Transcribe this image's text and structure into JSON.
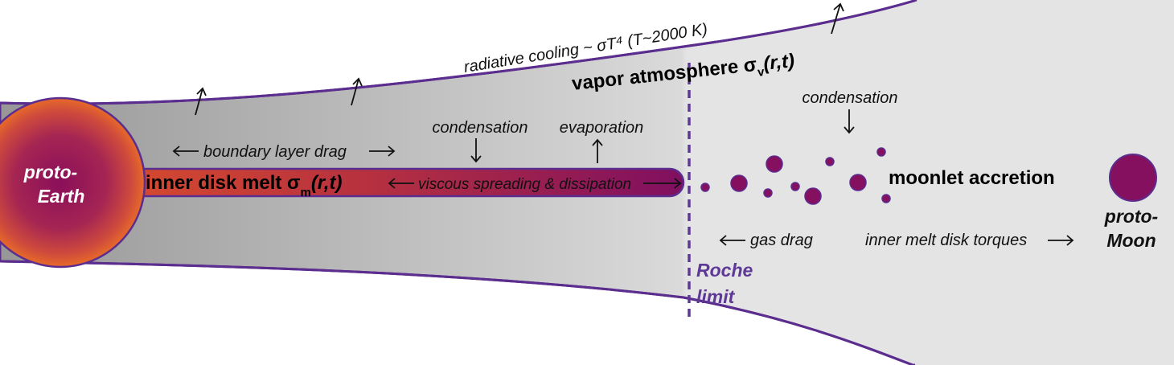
{
  "colors": {
    "disk_dark": "#9d9d9d",
    "disk_light": "#e3e3e3",
    "outline": "#5b2d8e",
    "earth_core": "#8a0f5a",
    "earth_edge": "#e0602a",
    "melt_left": "#d24a2e",
    "melt_right": "#82105e",
    "moon": "#85105f",
    "roche": "#5e3896",
    "label_white": "#ffffff"
  },
  "labels": {
    "radiative_cooling": "radiative cooling ~ σT⁴ (T~2000 K)",
    "vapor_main": "vapor atmosphere σ",
    "vapor_sub": "v",
    "vapor_tail": "(r,t)",
    "boundary_layer": "boundary layer drag",
    "condensation_left": "condensation",
    "evaporation": "evaporation",
    "inner_melt_main": "inner disk melt σ",
    "inner_melt_sub": "m",
    "inner_melt_tail": "(r,t)",
    "viscous": "viscous spreading & dissipation",
    "condensation_right": "condensation",
    "moonlet_accretion": "moonlet accretion",
    "gas_drag": "gas drag",
    "inner_melt_torques": "inner melt disk torques",
    "roche_line1": "Roche",
    "roche_line2": "limit",
    "earth_line1": "proto-",
    "earth_line2": "Earth",
    "moon_line1": "proto-",
    "moon_line2": "Moon"
  },
  "icons": {
    "up_arrow": "arrow-up-icon",
    "down_arrow": "arrow-down-icon",
    "left_arrow": "arrow-left-icon",
    "right_arrow": "arrow-right-icon"
  }
}
